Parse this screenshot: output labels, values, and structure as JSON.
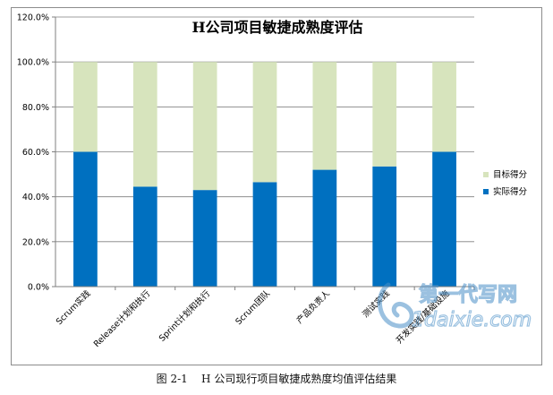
{
  "caption": "图 2-1    H 公司现行项目敏捷成熟度均值评估结果",
  "watermark": {
    "line1": "第一代写网",
    "line2": "1daixie.com"
  },
  "colors": {
    "actual": "#0070c0",
    "target": "#d7e4bd",
    "axis": "#7f7f7f",
    "grid": "#7f7f7f",
    "watermark": "#4a90c8"
  },
  "chart_data": {
    "type": "bar",
    "stacked": true,
    "title": "H公司项目敏捷成熟度评估",
    "categories": [
      "Scrum实践",
      "Release计划和执行",
      "Sprint计划和执行",
      "Scrum团队",
      "产品负责人",
      "测试实践",
      "开发实践/基础设施"
    ],
    "series": [
      {
        "name": "实际得分",
        "color": "#0070c0",
        "values": [
          60,
          44.5,
          43,
          46.5,
          52,
          53.5,
          60
        ]
      },
      {
        "name": "目标得分",
        "color": "#d7e4bd",
        "values": [
          40,
          55.5,
          57,
          53.5,
          48,
          46.5,
          40
        ]
      }
    ],
    "ylim": [
      0,
      120
    ],
    "yticks": [
      "0.0%",
      "20.0%",
      "40.0%",
      "60.0%",
      "80.0%",
      "100.0%",
      "120.0%"
    ],
    "ytick_values": [
      0,
      20,
      40,
      60,
      80,
      100,
      120
    ],
    "legend": [
      "目标得分",
      "实际得分"
    ],
    "legend_position": "right",
    "grid": true
  }
}
